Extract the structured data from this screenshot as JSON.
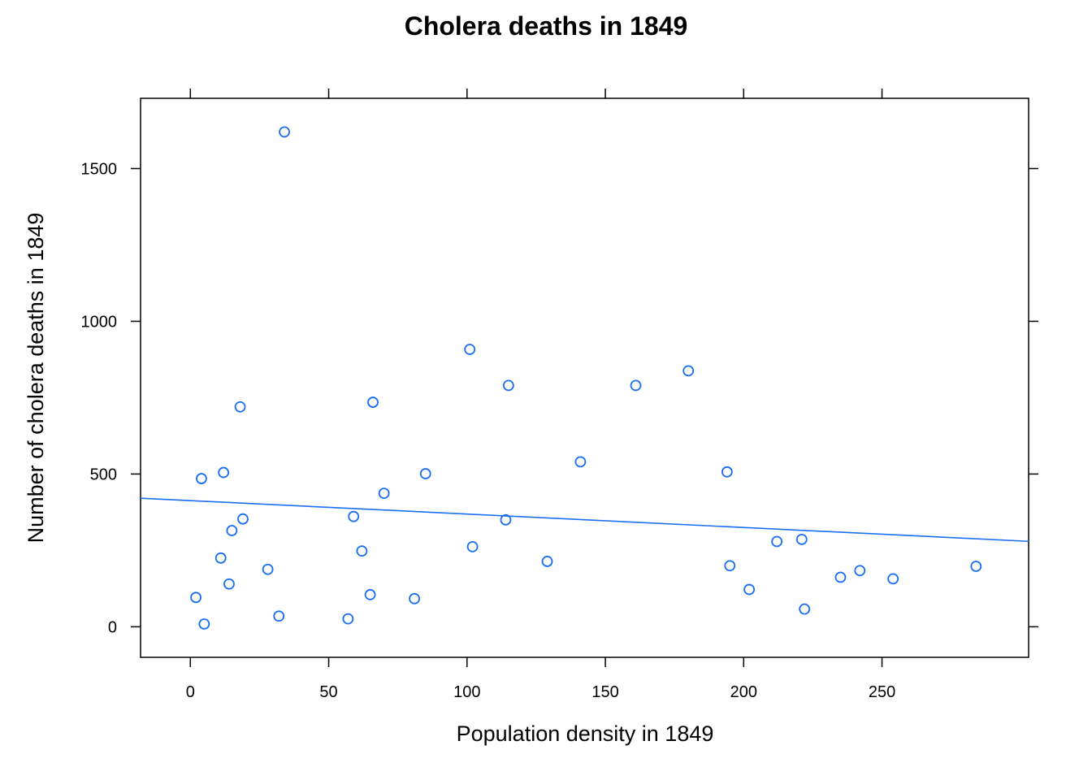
{
  "chart_data": {
    "type": "scatter",
    "title": "Cholera deaths in 1849",
    "xlabel": "Population density in 1849",
    "ylabel": "Number of cholera deaths in 1849",
    "xlim": [
      -18,
      303
    ],
    "ylim": [
      -100,
      1730
    ],
    "xticks": [
      0,
      50,
      100,
      150,
      200,
      250
    ],
    "xtick_labels": [
      "0",
      "50",
      "100",
      "150",
      "200",
      "250"
    ],
    "yticks": [
      0,
      500,
      1000,
      1500
    ],
    "ytick_labels": [
      "0",
      "500",
      "1000",
      "1500"
    ],
    "grid": false,
    "point_color": "#1a6ef5",
    "line_color": "#1a6ef5",
    "regression_line": {
      "intercept": 413,
      "slope": -0.44
    },
    "points": [
      {
        "x": 2,
        "y": 96
      },
      {
        "x": 4,
        "y": 485
      },
      {
        "x": 5,
        "y": 9
      },
      {
        "x": 11,
        "y": 225
      },
      {
        "x": 12,
        "y": 505
      },
      {
        "x": 14,
        "y": 140
      },
      {
        "x": 15,
        "y": 315
      },
      {
        "x": 18,
        "y": 720
      },
      {
        "x": 19,
        "y": 353
      },
      {
        "x": 28,
        "y": 188
      },
      {
        "x": 32,
        "y": 35
      },
      {
        "x": 34,
        "y": 1620
      },
      {
        "x": 57,
        "y": 26
      },
      {
        "x": 59,
        "y": 361
      },
      {
        "x": 62,
        "y": 248
      },
      {
        "x": 65,
        "y": 105
      },
      {
        "x": 66,
        "y": 735
      },
      {
        "x": 70,
        "y": 437
      },
      {
        "x": 81,
        "y": 92
      },
      {
        "x": 85,
        "y": 501
      },
      {
        "x": 101,
        "y": 908
      },
      {
        "x": 102,
        "y": 262
      },
      {
        "x": 114,
        "y": 350
      },
      {
        "x": 115,
        "y": 790
      },
      {
        "x": 129,
        "y": 214
      },
      {
        "x": 141,
        "y": 540
      },
      {
        "x": 161,
        "y": 790
      },
      {
        "x": 180,
        "y": 838
      },
      {
        "x": 194,
        "y": 507
      },
      {
        "x": 195,
        "y": 200
      },
      {
        "x": 202,
        "y": 122
      },
      {
        "x": 212,
        "y": 279
      },
      {
        "x": 221,
        "y": 286
      },
      {
        "x": 222,
        "y": 58
      },
      {
        "x": 235,
        "y": 162
      },
      {
        "x": 242,
        "y": 184
      },
      {
        "x": 254,
        "y": 157
      },
      {
        "x": 284,
        "y": 198
      }
    ]
  }
}
